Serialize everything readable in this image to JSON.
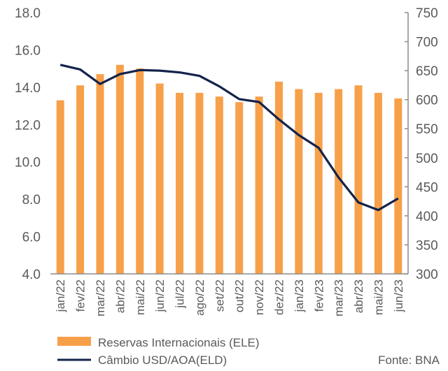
{
  "chart_data": {
    "type": "bar",
    "categories": [
      "jan/22",
      "fev/22",
      "mar/22",
      "abr/22",
      "mai/22",
      "jun/22",
      "jul/22",
      "ago/22",
      "set/22",
      "out/22",
      "nov/22",
      "dez/22",
      "jan/23",
      "fev/23",
      "mar/23",
      "abr/23",
      "mai/23",
      "jun/23"
    ],
    "series": [
      {
        "name": "Reservas Internacionais (ELE)",
        "type": "bar",
        "axis": "left",
        "color": "#f7a04a",
        "values": [
          13.3,
          14.1,
          14.7,
          15.2,
          15.0,
          14.2,
          13.7,
          13.7,
          13.5,
          13.2,
          13.5,
          14.3,
          13.9,
          13.7,
          13.9,
          14.1,
          13.7,
          13.4
        ]
      },
      {
        "name": "Câmbio USD/AOA(ELD)",
        "type": "line",
        "axis": "right",
        "color": "#14234b",
        "values": [
          660,
          652,
          627,
          644,
          651,
          650,
          647,
          641,
          623,
          601,
          596,
          566,
          539,
          517,
          466,
          423,
          410,
          430
        ]
      }
    ],
    "y_left": {
      "ylim": [
        4.0,
        18.0
      ],
      "ticks": [
        "4.0",
        "6.0",
        "8.0",
        "10.0",
        "12.0",
        "14.0",
        "16.0",
        "18.0"
      ]
    },
    "y_right": {
      "ylim": [
        300,
        750
      ],
      "ticks": [
        "300",
        "350",
        "400",
        "450",
        "500",
        "550",
        "600",
        "650",
        "700",
        "750"
      ]
    },
    "grid": false,
    "legend_position": "bottom-left",
    "source": "Fonte: BNA"
  }
}
